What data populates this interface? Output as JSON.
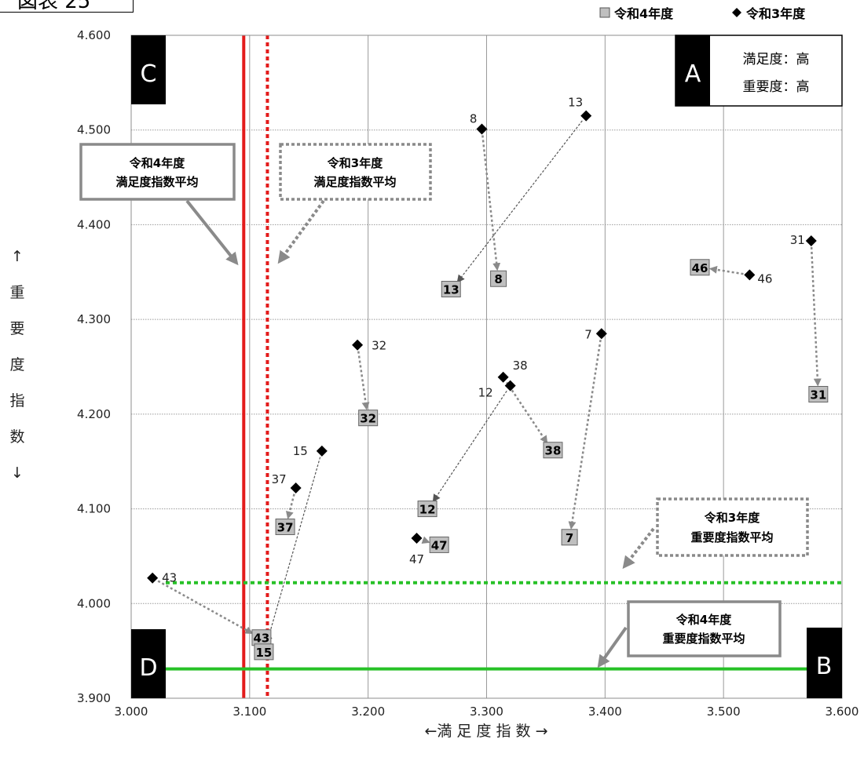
{
  "figure_tag": "図表 25",
  "chart_data": {
    "type": "scatter",
    "xlabel": "←満 足 度 指 数 →",
    "ylabel_chars": [
      "↑",
      "重",
      "要",
      "度",
      "指",
      "数",
      "↓"
    ],
    "xlim": [
      3.0,
      3.6
    ],
    "ylim": [
      3.9,
      4.6
    ],
    "x_ticks": [
      "3.000",
      "3.100",
      "3.200",
      "3.300",
      "3.400",
      "3.500",
      "3.600"
    ],
    "y_ticks": [
      "3.900",
      "4.000",
      "4.100",
      "4.200",
      "4.300",
      "4.400",
      "4.500",
      "4.600"
    ],
    "grid": true,
    "legend_position": "top-right",
    "series": [
      {
        "name": "令和4年度",
        "marker": "square",
        "color": "#bfbfbf",
        "points": [
          {
            "label": "13",
            "x": 3.27,
            "y": 4.332
          },
          {
            "label": "8",
            "x": 3.31,
            "y": 4.343
          },
          {
            "label": "46",
            "x": 3.48,
            "y": 4.355
          },
          {
            "label": "31",
            "x": 3.58,
            "y": 4.221
          },
          {
            "label": "32",
            "x": 3.2,
            "y": 4.196
          },
          {
            "label": "38",
            "x": 3.356,
            "y": 4.162
          },
          {
            "label": "12",
            "x": 3.25,
            "y": 4.1
          },
          {
            "label": "37",
            "x": 3.13,
            "y": 4.081
          },
          {
            "label": "47",
            "x": 3.26,
            "y": 4.062
          },
          {
            "label": "7",
            "x": 3.37,
            "y": 4.07
          },
          {
            "label": "43",
            "x": 3.11,
            "y": 3.964
          },
          {
            "label": "15",
            "x": 3.112,
            "y": 3.949
          }
        ]
      },
      {
        "name": "令和3年度",
        "marker": "diamond",
        "color": "#000000",
        "points": [
          {
            "label": "13",
            "x": 3.384,
            "y": 4.515
          },
          {
            "label": "8",
            "x": 3.296,
            "y": 4.501
          },
          {
            "label": "31",
            "x": 3.574,
            "y": 4.383
          },
          {
            "label": "46",
            "x": 3.522,
            "y": 4.347
          },
          {
            "label": "7",
            "x": 3.397,
            "y": 4.285
          },
          {
            "label": "32",
            "x": 3.191,
            "y": 4.273
          },
          {
            "label": "38",
            "x": 3.314,
            "y": 4.239
          },
          {
            "label": "12",
            "x": 3.32,
            "y": 4.23
          },
          {
            "label": "15",
            "x": 3.161,
            "y": 4.161
          },
          {
            "label": "37",
            "x": 3.139,
            "y": 4.122
          },
          {
            "label": "47",
            "x": 3.241,
            "y": 4.069
          },
          {
            "label": "43",
            "x": 3.018,
            "y": 4.027
          }
        ]
      }
    ],
    "reference_lines": [
      {
        "label": "令和4年度 満足度指数平均",
        "axis": "x",
        "value": 3.095,
        "color": "#e31b1b",
        "style": "solid"
      },
      {
        "label": "令和3年度 満足度指数平均",
        "axis": "x",
        "value": 3.115,
        "color": "#e31b1b",
        "style": "dotted"
      },
      {
        "label": "令和3年度 重要度指数平均",
        "axis": "y",
        "value": 4.022,
        "color": "#27c127",
        "style": "dotted"
      },
      {
        "label": "令和4年度 重要度指数平均",
        "axis": "y",
        "value": 3.931,
        "color": "#27c127",
        "style": "solid"
      }
    ],
    "quadrants": {
      "A": "A",
      "B": "B",
      "C": "C",
      "D": "D",
      "A_note_1": "満足度：高",
      "A_note_2": "重要度：高"
    },
    "callouts": {
      "r4_satisfaction_1": "令和4年度",
      "r4_satisfaction_2": "満足度指数平均",
      "r3_satisfaction_1": "令和3年度",
      "r3_satisfaction_2": "満足度指数平均",
      "r3_importance_1": "令和3年度",
      "r3_importance_2": "重要度指数平均",
      "r4_importance_1": "令和4年度",
      "r4_importance_2": "重要度指数平均"
    },
    "legend": {
      "r4": "令和4年度",
      "r3": "令和3年度"
    }
  }
}
